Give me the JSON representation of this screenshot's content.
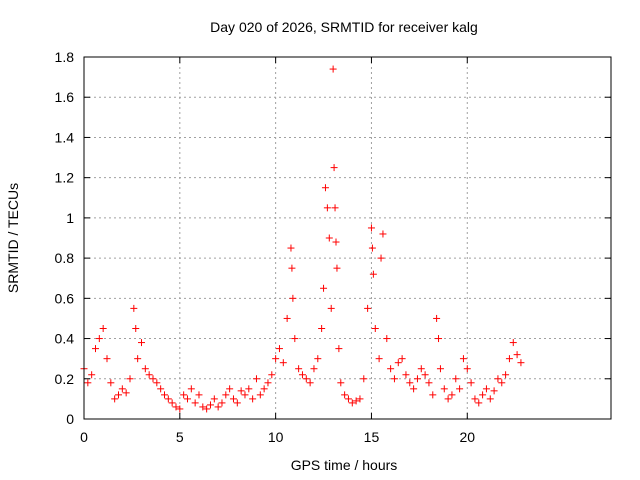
{
  "chart_data": {
    "type": "scatter",
    "title": "Day 020 of 2026, SRMTID for receiver kalg",
    "xlabel": "GPS time / hours",
    "ylabel": "SRMTID / TECUs",
    "xlim": [
      0,
      27.5
    ],
    "ylim": [
      0,
      1.8
    ],
    "xticks": [
      0,
      5,
      10,
      15,
      20
    ],
    "xtick_labels": [
      "0",
      "5",
      "10",
      "15",
      "20"
    ],
    "yticks": [
      0,
      0.2,
      0.4,
      0.6,
      0.8,
      1,
      1.2,
      1.4,
      1.6,
      1.8
    ],
    "ytick_labels": [
      "0",
      "0.2",
      "0.4",
      "0.6",
      "0.8",
      "1",
      "1.2",
      "1.4",
      "1.6",
      "1.8"
    ],
    "grid": true,
    "marker": "+",
    "color": "#ff0000",
    "series": [
      {
        "name": "SRMTID",
        "x": [
          0.0,
          0.2,
          0.4,
          0.6,
          0.8,
          1.0,
          1.2,
          1.4,
          1.6,
          1.8,
          2.0,
          2.2,
          2.4,
          2.6,
          2.7,
          2.8,
          3.0,
          3.2,
          3.4,
          3.6,
          3.8,
          4.0,
          4.2,
          4.4,
          4.6,
          4.8,
          5.0,
          5.2,
          5.4,
          5.6,
          5.8,
          6.0,
          6.2,
          6.4,
          6.6,
          6.8,
          7.0,
          7.2,
          7.4,
          7.6,
          7.8,
          8.0,
          8.2,
          8.4,
          8.6,
          8.8,
          9.0,
          9.2,
          9.4,
          9.6,
          9.8,
          10.0,
          10.2,
          10.4,
          10.6,
          10.8,
          10.85,
          10.9,
          11.0,
          11.2,
          11.4,
          11.6,
          11.8,
          12.0,
          12.2,
          12.4,
          12.5,
          12.6,
          12.7,
          12.8,
          12.9,
          13.0,
          13.05,
          13.1,
          13.15,
          13.2,
          13.3,
          13.4,
          13.6,
          13.8,
          14.0,
          14.2,
          14.4,
          14.6,
          14.8,
          15.0,
          15.05,
          15.1,
          15.2,
          15.4,
          15.5,
          15.6,
          15.8,
          16.0,
          16.2,
          16.4,
          16.6,
          16.8,
          17.0,
          17.2,
          17.4,
          17.6,
          17.8,
          18.0,
          18.2,
          18.4,
          18.5,
          18.6,
          18.8,
          19.0,
          19.2,
          19.4,
          19.6,
          19.8,
          20.0,
          20.2,
          20.4,
          20.6,
          20.8,
          21.0,
          21.2,
          21.4,
          21.6,
          21.8,
          22.0,
          22.2,
          22.4,
          22.6,
          22.8
        ],
        "y": [
          0.25,
          0.18,
          0.22,
          0.35,
          0.4,
          0.45,
          0.3,
          0.18,
          0.1,
          0.12,
          0.15,
          0.13,
          0.2,
          0.55,
          0.45,
          0.3,
          0.38,
          0.25,
          0.22,
          0.2,
          0.18,
          0.15,
          0.12,
          0.1,
          0.08,
          0.06,
          0.05,
          0.12,
          0.1,
          0.15,
          0.08,
          0.12,
          0.06,
          0.05,
          0.07,
          0.1,
          0.06,
          0.08,
          0.12,
          0.15,
          0.1,
          0.08,
          0.14,
          0.12,
          0.15,
          0.1,
          0.2,
          0.12,
          0.15,
          0.18,
          0.22,
          0.3,
          0.35,
          0.28,
          0.5,
          0.85,
          0.75,
          0.6,
          0.4,
          0.25,
          0.22,
          0.2,
          0.18,
          0.25,
          0.3,
          0.45,
          0.65,
          1.15,
          1.05,
          0.9,
          0.55,
          1.74,
          1.25,
          1.05,
          0.88,
          0.75,
          0.35,
          0.18,
          0.12,
          0.1,
          0.08,
          0.09,
          0.1,
          0.2,
          0.55,
          0.95,
          0.85,
          0.72,
          0.45,
          0.3,
          0.8,
          0.92,
          0.4,
          0.25,
          0.2,
          0.28,
          0.3,
          0.22,
          0.18,
          0.15,
          0.2,
          0.25,
          0.22,
          0.18,
          0.12,
          0.5,
          0.4,
          0.25,
          0.15,
          0.1,
          0.12,
          0.2,
          0.15,
          0.3,
          0.25,
          0.18,
          0.1,
          0.08,
          0.12,
          0.15,
          0.1,
          0.14,
          0.2,
          0.18,
          0.22,
          0.3,
          0.38,
          0.32,
          0.28
        ]
      }
    ]
  }
}
